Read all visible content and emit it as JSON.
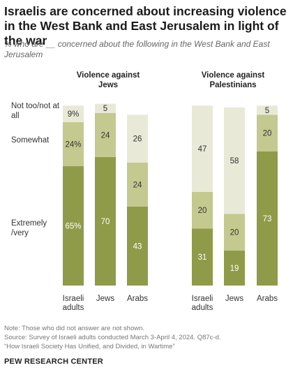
{
  "title": "Israelis are concerned about increasing violence in the West Bank and East Jerusalem in light of the war",
  "subtitle": "% who are __ concerned about the following in the West Bank and East Jerusalem",
  "row_labels": {
    "not_too": "Not too/not at all",
    "somewhat": "Somewhat",
    "extremely": "Extremely /very"
  },
  "chart_data": {
    "type": "bar",
    "stacked": true,
    "groups": [
      {
        "title": "Violence against Jews",
        "categories": [
          "Israeli adults",
          "Jews",
          "Arabs"
        ],
        "series": [
          {
            "name": "Extremely /very",
            "values": [
              65,
              70,
              43
            ],
            "labels": [
              "65%",
              "70",
              "43"
            ]
          },
          {
            "name": "Somewhat",
            "values": [
              24,
              24,
              24
            ],
            "labels": [
              "24%",
              "24",
              "24"
            ]
          },
          {
            "name": "Not too/not at all",
            "values": [
              9,
              5,
              26
            ],
            "labels": [
              "9%",
              "5",
              "26"
            ]
          }
        ]
      },
      {
        "title": "Violence against Palestinians",
        "categories": [
          "Israeli adults",
          "Jews",
          "Arabs"
        ],
        "series": [
          {
            "name": "Extremely /very",
            "values": [
              31,
              19,
              73
            ],
            "labels": [
              "31",
              "19",
              "73"
            ]
          },
          {
            "name": "Somewhat",
            "values": [
              20,
              20,
              20
            ],
            "labels": [
              "20",
              "20",
              "20"
            ]
          },
          {
            "name": "Not too/not at all",
            "values": [
              47,
              58,
              5
            ],
            "labels": [
              "47",
              "58",
              "5"
            ]
          }
        ]
      }
    ],
    "colors": {
      "extremely": "#8f9b48",
      "somewhat": "#c3c98f",
      "not_too": "#e8e9d7"
    },
    "label_colors": {
      "extremely": "#ffffff",
      "somewhat": "#333333",
      "not_too": "#333333"
    }
  },
  "notes": {
    "note": "Note: Those who did not answer are not shown.",
    "source": "Source: Survey of Israeli adults conducted March 3-April 4, 2024. Q87c-d.",
    "report": "“How Israeli Society Has Unified, and Divided, in Wartime”"
  },
  "brand": "PEW RESEARCH CENTER"
}
